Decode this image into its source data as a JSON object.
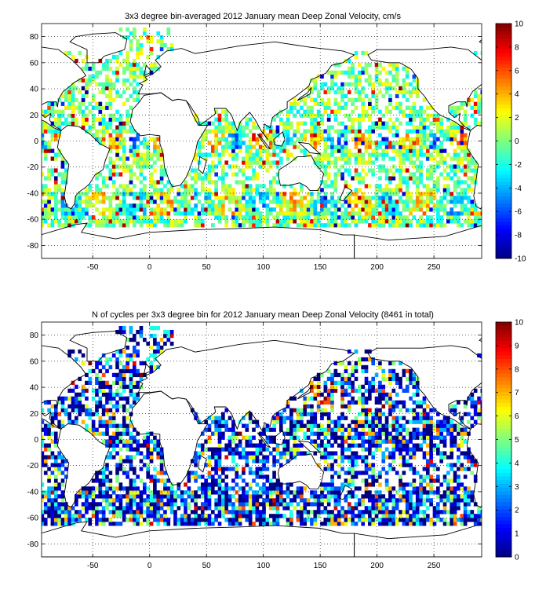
{
  "chart_data": [
    {
      "type": "heatmap",
      "title": "3x3 degree bin-averaged 2012 January mean Deep Zonal Velocity, cm/s",
      "xlabel": "",
      "ylabel": "",
      "xlim": [
        -95,
        292
      ],
      "ylim": [
        -90,
        90
      ],
      "xticks": [
        -50,
        0,
        50,
        100,
        150,
        200,
        250
      ],
      "yticks": [
        -80,
        -60,
        -40,
        -20,
        0,
        20,
        40,
        60,
        80
      ],
      "grid": true,
      "colorbar": {
        "min": -10,
        "max": 10,
        "ticks": [
          -10,
          -8,
          -6,
          -4,
          -2,
          0,
          2,
          4,
          6,
          8,
          10
        ],
        "colormap": "jet"
      },
      "bin_size_deg": 3
    },
    {
      "type": "heatmap",
      "title": "N of cycles per 3x3 degree bin for 2012 January mean Deep Zonal Velocity (8461 in total)",
      "xlabel": "",
      "ylabel": "",
      "xlim": [
        -95,
        292
      ],
      "ylim": [
        -90,
        90
      ],
      "xticks": [
        -50,
        0,
        50,
        100,
        150,
        200,
        250
      ],
      "yticks": [
        -80,
        -60,
        -40,
        -20,
        0,
        20,
        40,
        60,
        80
      ],
      "grid": true,
      "colorbar": {
        "min": 0,
        "max": 10,
        "ticks": [
          0,
          1,
          2,
          3,
          4,
          5,
          6,
          7,
          8,
          9,
          10
        ],
        "colormap": "jet"
      },
      "bin_size_deg": 3,
      "total_cycles": 8461
    }
  ]
}
